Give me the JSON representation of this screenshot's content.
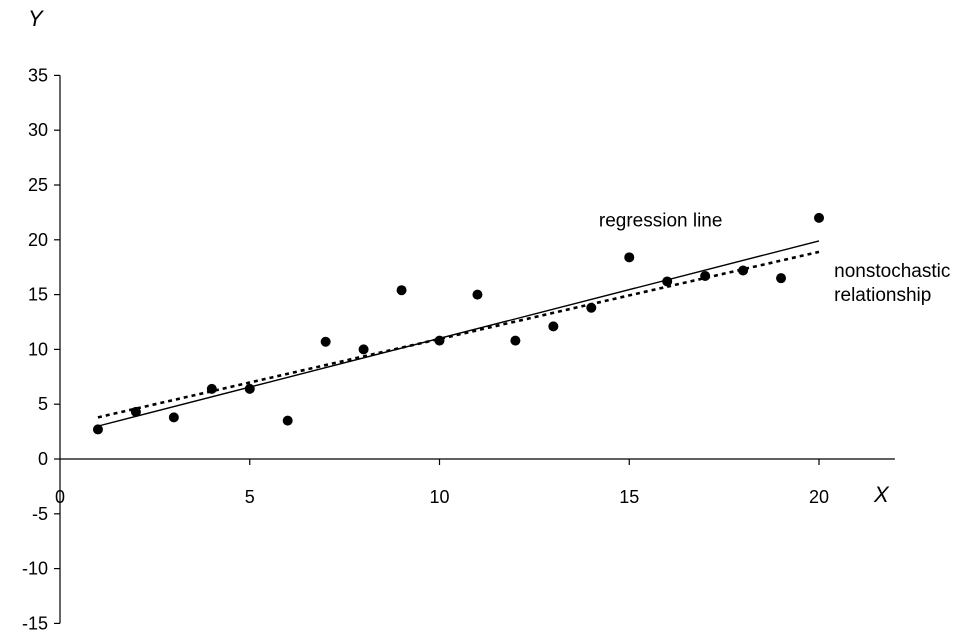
{
  "chart_data": {
    "type": "scatter",
    "xlabel": "X",
    "ylabel": "Y",
    "xlim": [
      0,
      22
    ],
    "ylim": [
      -15,
      35
    ],
    "x_ticks": [
      0,
      5,
      10,
      15,
      20
    ],
    "y_ticks": [
      35,
      30,
      25,
      20,
      15,
      10,
      5,
      0,
      -5,
      -10,
      -15
    ],
    "grid": false,
    "points": {
      "x": [
        1,
        2,
        3,
        4,
        5,
        6,
        7,
        8,
        9,
        10,
        11,
        12,
        13,
        14,
        15,
        16,
        17,
        18,
        19,
        20
      ],
      "y": [
        2.7,
        4.3,
        3.8,
        6.4,
        6.4,
        3.5,
        10.7,
        10.0,
        15.4,
        10.8,
        15.0,
        10.8,
        12.1,
        13.8,
        18.4,
        16.2,
        16.7,
        17.2,
        16.5,
        22.0
      ]
    },
    "lines": [
      {
        "style": "solid",
        "x": [
          1,
          20
        ],
        "y": [
          3.0,
          19.9
        ]
      },
      {
        "style": "dotted",
        "x": [
          1,
          20
        ],
        "y": [
          3.8,
          18.9
        ]
      }
    ],
    "annotations": [
      {
        "text": "regression line",
        "x": 14.2,
        "y": 21.2
      },
      {
        "text": "nonstochastic",
        "x": 20.4,
        "y": 16.6
      },
      {
        "text": "relationship",
        "x": 20.4,
        "y": 14.4
      }
    ]
  }
}
